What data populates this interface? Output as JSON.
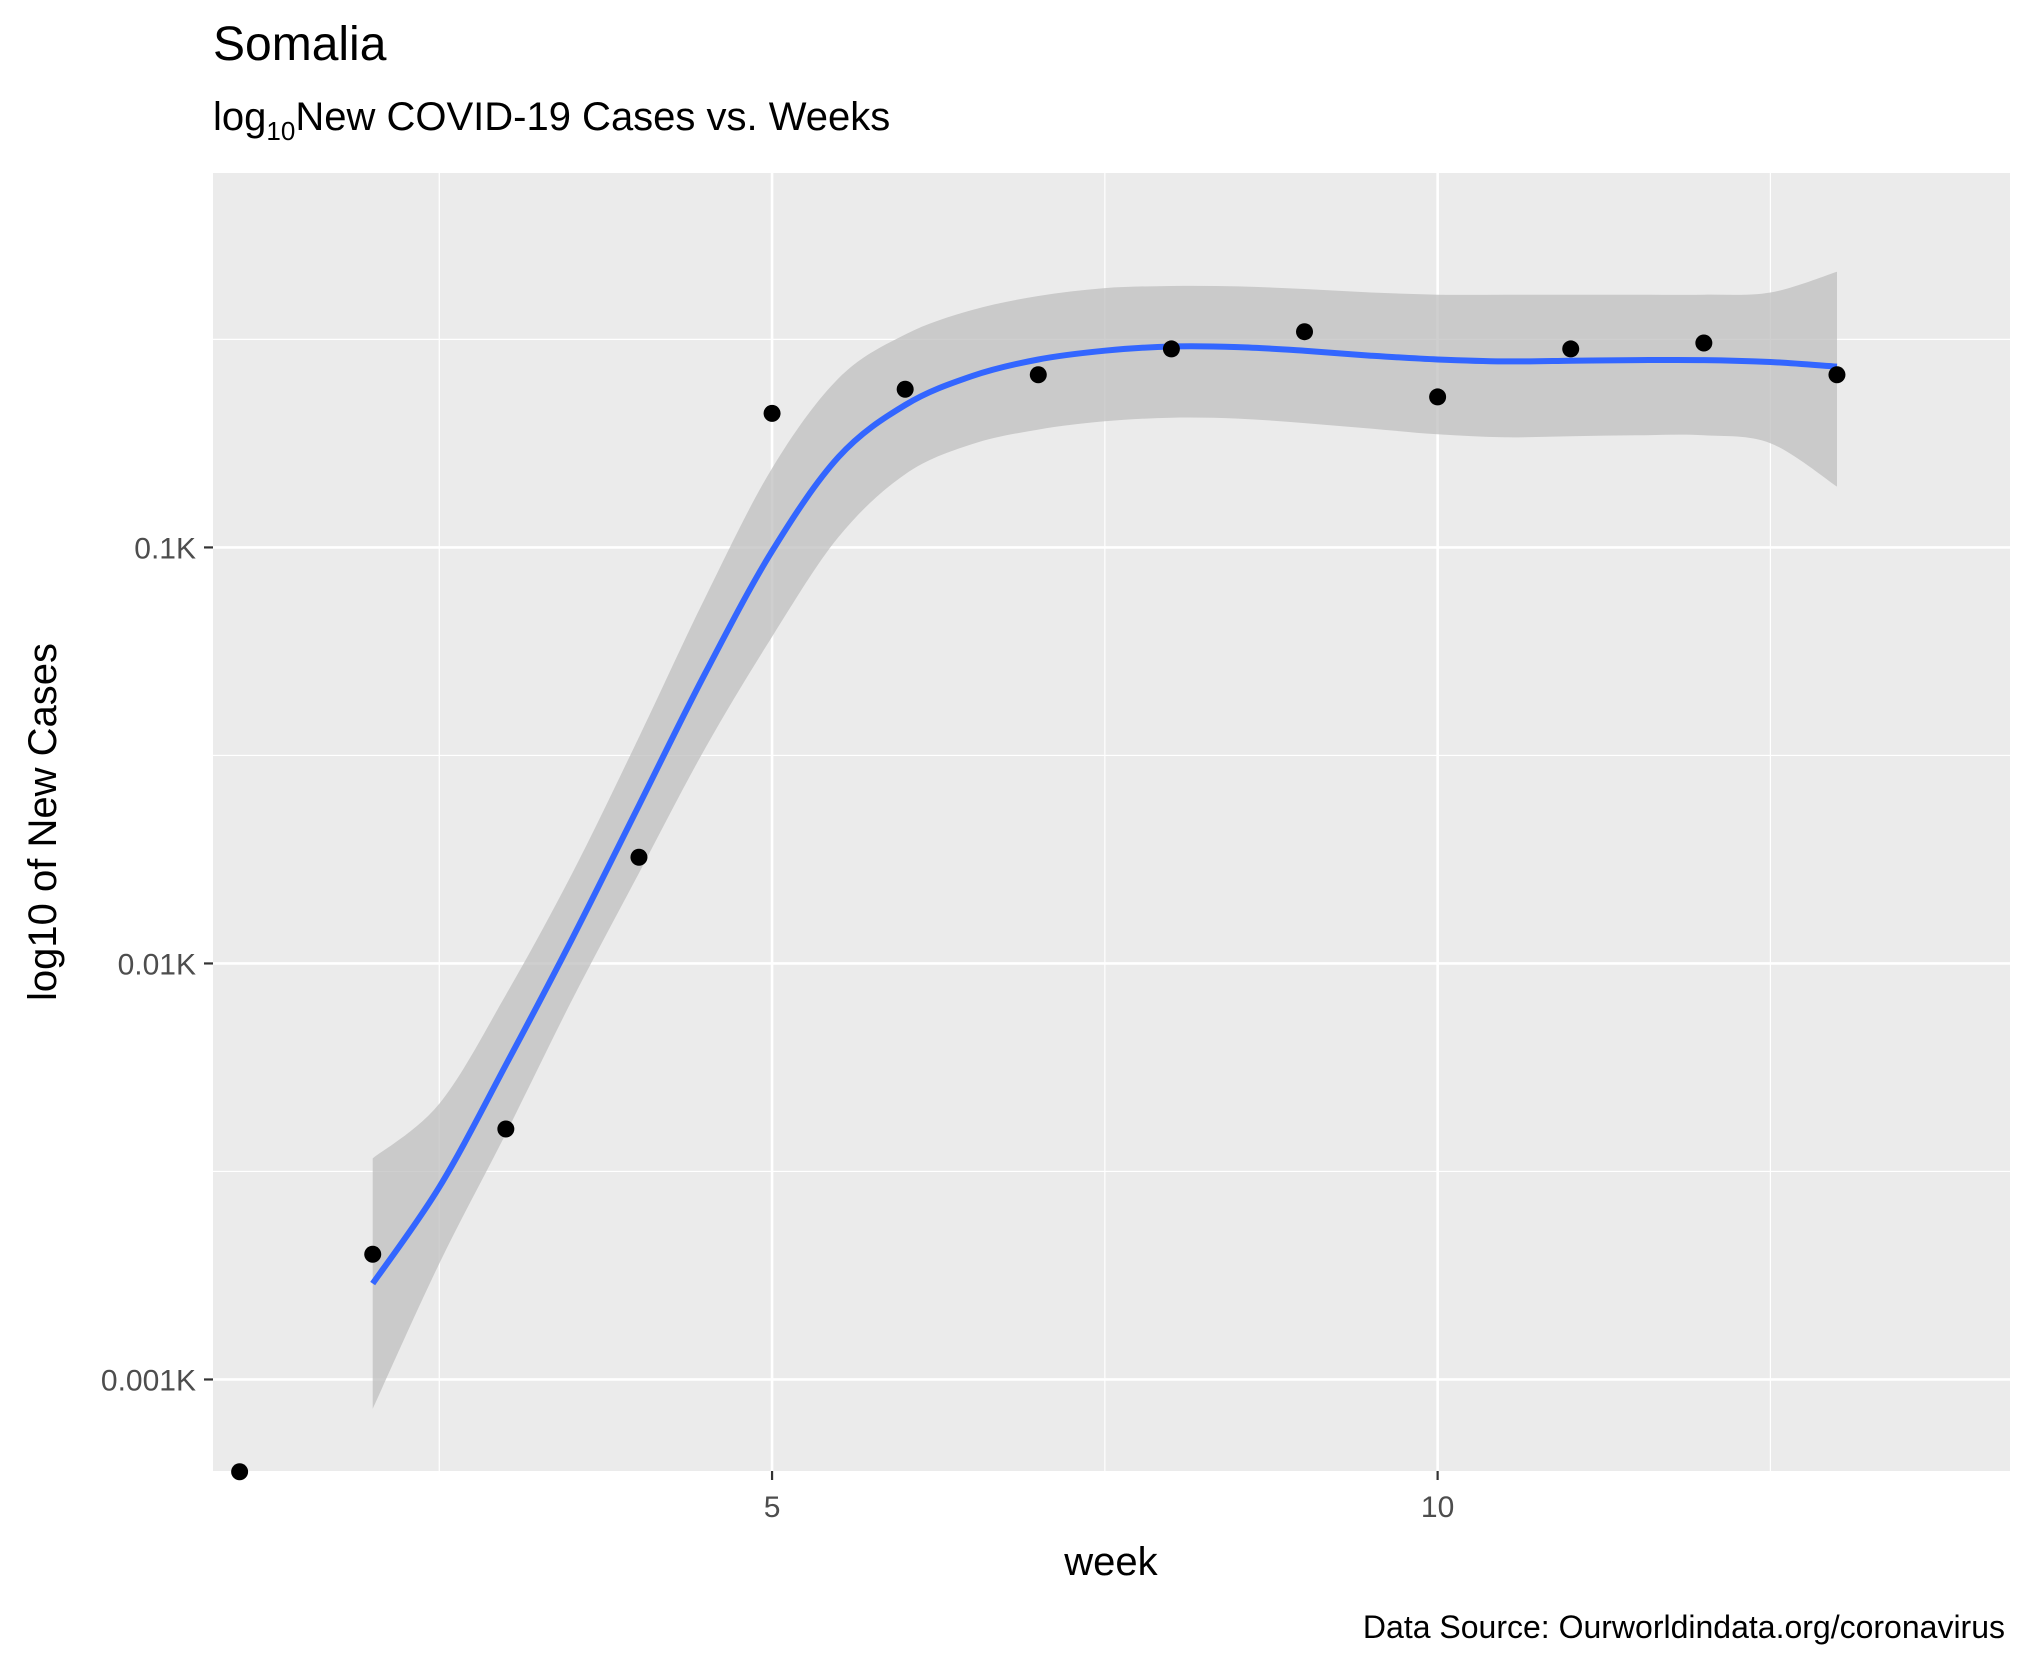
{
  "chart_data": {
    "type": "scatter",
    "title": "Somalia",
    "subtitle": {
      "prefix": "log",
      "subscript": "10",
      "rest": "New COVID-19 Cases vs. Weeks"
    },
    "xlabel": "week",
    "ylabel": "log10 of New Cases",
    "caption": "Data Source: Ourworldindata.org/coronavirus",
    "y_scale": "log10",
    "x_ticks": [
      {
        "value": 5,
        "label": "5"
      },
      {
        "value": 10,
        "label": "10"
      }
    ],
    "y_ticks": [
      {
        "value": 1,
        "label": "0.001K"
      },
      {
        "value": 10,
        "label": "0.01K"
      },
      {
        "value": 100,
        "label": "0.1K"
      }
    ],
    "xlim": [
      0.8,
      14.3
    ],
    "ylim_log10": [
      -0.22,
      2.9
    ],
    "grid": true,
    "legend": "none",
    "colors": {
      "panel": "#ebebeb",
      "grid": "#ffffff",
      "points": "#000000",
      "smooth_line": "#3366ff",
      "ribbon": "#bdbdbd"
    },
    "series": [
      {
        "type": "points",
        "x": [
          1,
          2,
          3,
          4,
          5,
          6,
          7,
          8,
          9,
          10,
          11,
          12,
          13
        ],
        "y": [
          0.6,
          2,
          4,
          18,
          210,
          240,
          260,
          300,
          330,
          230,
          300,
          310,
          260
        ]
      },
      {
        "type": "smooth",
        "method": "loess",
        "x": [
          2,
          2.5,
          3,
          3.5,
          4,
          4.5,
          5,
          5.5,
          6,
          6.5,
          7,
          7.5,
          8,
          8.5,
          9,
          9.5,
          10,
          10.5,
          11,
          11.5,
          12,
          12.5,
          13
        ],
        "y": [
          1.7,
          2.9,
          5.7,
          11.5,
          24,
          50,
          98,
          165,
          220,
          258,
          283,
          297,
          304,
          303,
          297,
          289,
          283,
          280,
          281,
          282,
          282,
          279,
          272
        ],
        "ci_lower": [
          0.85,
          1.9,
          3.9,
          8.2,
          16.5,
          33,
          61,
          106,
          150,
          177,
          192,
          201,
          205,
          204,
          199,
          193,
          187,
          184,
          185,
          186,
          186,
          178,
          140
        ],
        "ci_upper": [
          3.4,
          4.6,
          8.4,
          16.5,
          35,
          76,
          155,
          255,
          325,
          372,
          402,
          420,
          425,
          424,
          418,
          410,
          405,
          405,
          405,
          405,
          405,
          410,
          460
        ]
      }
    ]
  }
}
